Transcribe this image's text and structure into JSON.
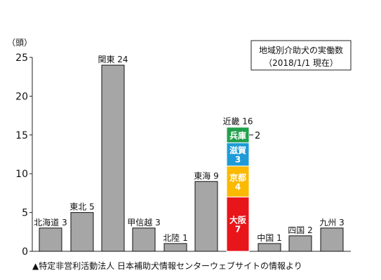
{
  "chart_data": {
    "type": "bar",
    "title": "地域別介助犬の実働数",
    "subtitle": "（2018/1/1 現在）",
    "ylabel": "（頭）",
    "ylim": [
      0,
      25
    ],
    "yticks": [
      0,
      5,
      10,
      15,
      20,
      25
    ],
    "grid": false,
    "bar_color": "#a6a6a6",
    "categories": [
      "北海道",
      "東北",
      "関東",
      "甲信越",
      "北陸",
      "東海",
      "近畿",
      "中国",
      "四国",
      "九州"
    ],
    "values": [
      3,
      5,
      24,
      3,
      1,
      9,
      16,
      1,
      2,
      3
    ],
    "bar_labels": [
      "北海道 3",
      "東北 5",
      "関東 24",
      "甲信越 3",
      "北陸 1",
      "東海 9",
      "近畿 16",
      "中国 1",
      "四国 2",
      "九州 3"
    ],
    "stack": {
      "category": "近畿",
      "segments": [
        {
          "name": "大阪",
          "value": 7,
          "color": "#e8151b",
          "label_lines": [
            "大阪",
            "7"
          ]
        },
        {
          "name": "京都",
          "value": 4,
          "color": "#fbb900",
          "label_lines": [
            "京都",
            "4"
          ]
        },
        {
          "name": "滋賀",
          "value": 3,
          "color": "#1e9bd7",
          "label_lines": [
            "滋賀",
            "3"
          ]
        },
        {
          "name": "兵庫",
          "value": 2,
          "color": "#22a04b",
          "label_lines": [
            "兵庫"
          ],
          "outside_label": "2"
        }
      ]
    },
    "source_note": "▲特定非営利活動法人 日本補助犬情報センターウェブサイトの情報より"
  }
}
